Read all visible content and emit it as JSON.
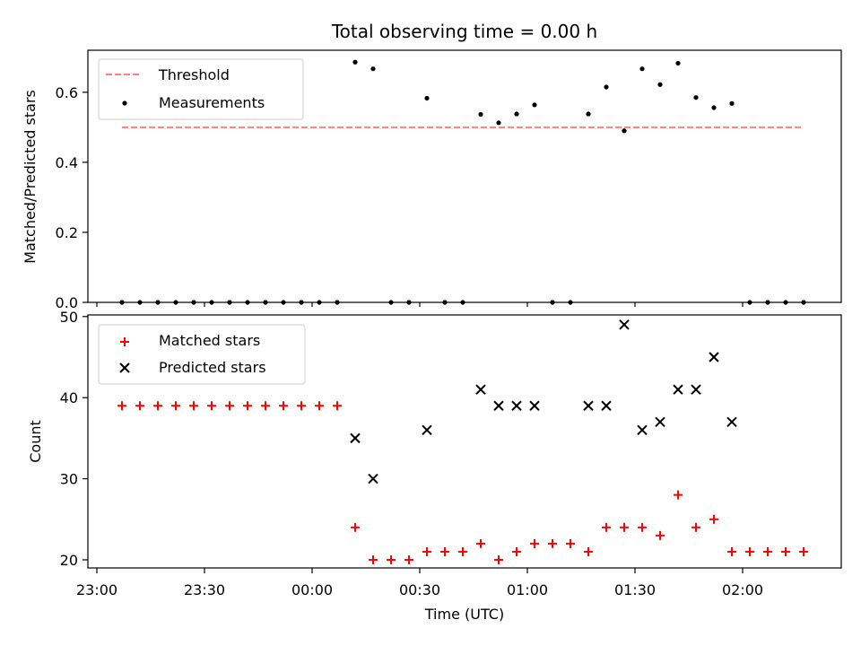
{
  "chart_data": [
    {
      "type": "scatter",
      "title": "Total observing time = 0.00 h",
      "ylabel": "Matched/Predicted stars",
      "ylim": [
        0,
        0.72
      ],
      "yticks": [
        0.0,
        0.2,
        0.4,
        0.6
      ],
      "ytick_labels": [
        "0.0",
        "0.2",
        "0.4",
        "0.6"
      ],
      "legend": {
        "position": "upper-left",
        "threshold_label": "Threshold",
        "measurements_label": "Measurements"
      },
      "colors": {
        "threshold": "#ff7f7f",
        "measurements": "#000000"
      },
      "threshold": {
        "value": 0.5,
        "x_start": "23:07",
        "x_end": "02:17"
      },
      "series": [
        {
          "name": "Measurements",
          "marker": "dot",
          "x": [
            "23:07",
            "23:12",
            "23:17",
            "23:22",
            "23:27",
            "23:32",
            "23:37",
            "23:42",
            "23:47",
            "23:52",
            "23:57",
            "00:02",
            "00:07",
            "00:12",
            "00:17",
            "00:22",
            "00:27",
            "00:32",
            "00:37",
            "00:42",
            "00:47",
            "00:52",
            "00:57",
            "01:02",
            "01:07",
            "01:12",
            "01:17",
            "01:22",
            "01:27",
            "01:32",
            "01:37",
            "01:42",
            "01:47",
            "01:52",
            "01:57",
            "02:02",
            "02:07",
            "02:12",
            "02:17"
          ],
          "values": [
            0,
            0,
            0,
            0,
            0,
            0,
            0,
            0,
            0,
            0,
            0,
            0,
            0,
            0.686,
            0.667,
            0,
            0,
            0.583,
            0,
            0,
            0.537,
            0.513,
            0.538,
            0.564,
            0,
            0,
            0.538,
            0.615,
            0.49,
            0.667,
            0.622,
            0.683,
            0.585,
            0.556,
            0.568,
            0,
            0,
            0,
            0
          ]
        }
      ]
    },
    {
      "type": "scatter",
      "xlabel": "Time (UTC)",
      "ylabel": "Count",
      "ylim": [
        19,
        50.2
      ],
      "yticks": [
        20,
        30,
        40,
        50
      ],
      "ytick_labels": [
        "20",
        "30",
        "40",
        "50"
      ],
      "xticks": [
        "23:00",
        "23:30",
        "00:00",
        "00:30",
        "01:00",
        "01:30",
        "02:00"
      ],
      "legend": {
        "position": "upper-left",
        "matched_label": "Matched stars",
        "predicted_label": "Predicted stars"
      },
      "colors": {
        "matched": "#ff0000",
        "predicted": "#000000"
      },
      "series": [
        {
          "name": "Matched stars",
          "marker": "plus",
          "x": [
            "23:07",
            "23:12",
            "23:17",
            "23:22",
            "23:27",
            "23:32",
            "23:37",
            "23:42",
            "23:47",
            "23:52",
            "23:57",
            "00:02",
            "00:07",
            "00:12",
            "00:17",
            "00:22",
            "00:27",
            "00:32",
            "00:37",
            "00:42",
            "00:47",
            "00:52",
            "00:57",
            "01:02",
            "01:07",
            "01:12",
            "01:17",
            "01:22",
            "01:27",
            "01:32",
            "01:37",
            "01:42",
            "01:47",
            "01:52",
            "01:57",
            "02:02",
            "02:07",
            "02:12",
            "02:17"
          ],
          "values": [
            39,
            39,
            39,
            39,
            39,
            39,
            39,
            39,
            39,
            39,
            39,
            39,
            39,
            24,
            20,
            20,
            20,
            21,
            21,
            21,
            22,
            20,
            21,
            22,
            22,
            22,
            21,
            24,
            24,
            24,
            23,
            28,
            24,
            25,
            21,
            21,
            21,
            21,
            21
          ]
        },
        {
          "name": "Predicted stars",
          "marker": "x",
          "x": [
            "00:12",
            "00:17",
            "00:32",
            "00:47",
            "00:52",
            "00:57",
            "01:02",
            "01:17",
            "01:22",
            "01:27",
            "01:32",
            "01:37",
            "01:42",
            "01:47",
            "01:52",
            "01:57"
          ],
          "values": [
            35,
            30,
            36,
            41,
            39,
            39,
            39,
            39,
            39,
            49,
            36,
            37,
            41,
            41,
            45,
            37
          ]
        }
      ]
    }
  ]
}
